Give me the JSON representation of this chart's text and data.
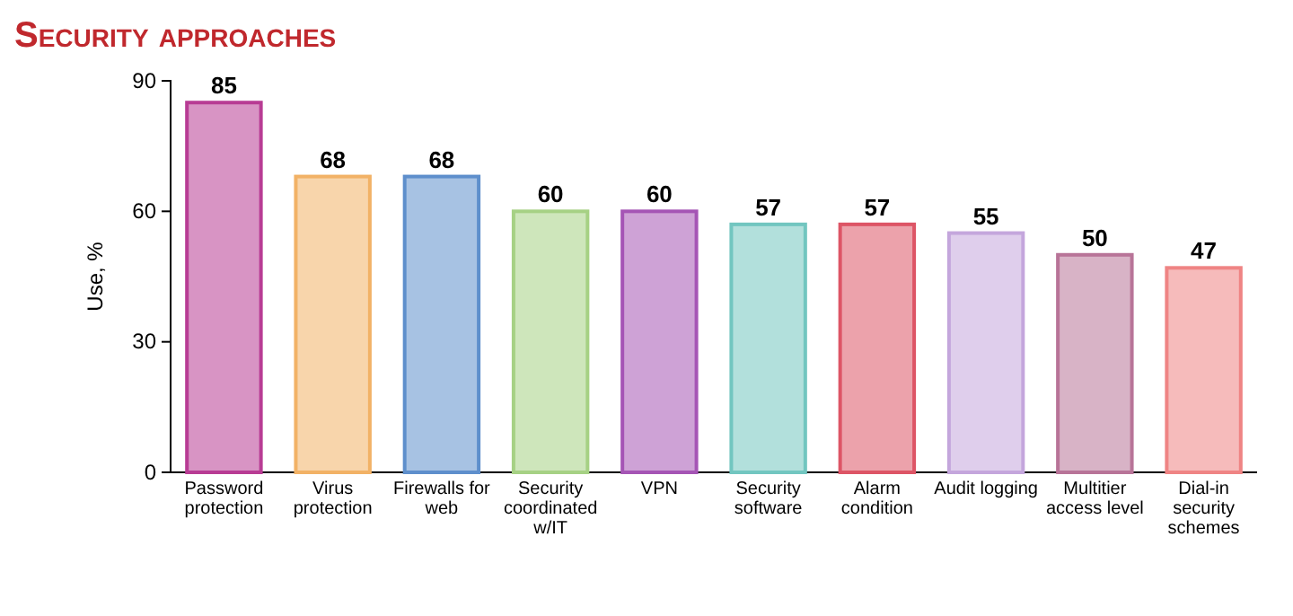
{
  "chart_data": {
    "type": "bar",
    "title": "Security approaches",
    "ylabel": "Use, %",
    "categories": [
      "Password protection",
      "Virus protection",
      "Firewalls for web",
      "Security coordinated w/IT",
      "VPN",
      "Security software",
      "Alarm condition",
      "Audit logging",
      "Multitier access level",
      "Dial-in security schemes"
    ],
    "values": [
      85,
      68,
      68,
      60,
      60,
      57,
      57,
      55,
      50,
      47
    ],
    "colors": [
      "#b83c94",
      "#f2b266",
      "#5e8fcc",
      "#a6d184",
      "#a555b5",
      "#72c6c0",
      "#dd5566",
      "#c4a6dc",
      "#b87498",
      "#ef8484"
    ],
    "ylim": [
      0,
      90
    ],
    "yticks": [
      0,
      30,
      60,
      90
    ],
    "data_labels": true
  }
}
